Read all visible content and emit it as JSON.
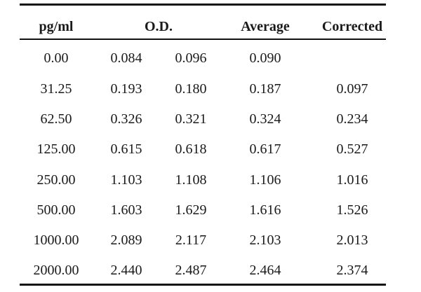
{
  "table": {
    "headers": {
      "conc": "pg/ml",
      "od": "O.D.",
      "average": "Average",
      "corrected": "Corrected"
    },
    "rows": [
      {
        "conc": "0.00",
        "od1": "0.084",
        "od2": "0.096",
        "average": "0.090",
        "corrected": ""
      },
      {
        "conc": "31.25",
        "od1": "0.193",
        "od2": "0.180",
        "average": "0.187",
        "corrected": "0.097"
      },
      {
        "conc": "62.50",
        "od1": "0.326",
        "od2": "0.321",
        "average": "0.324",
        "corrected": "0.234"
      },
      {
        "conc": "125.00",
        "od1": "0.615",
        "od2": "0.618",
        "average": "0.617",
        "corrected": "0.527"
      },
      {
        "conc": "250.00",
        "od1": "1.103",
        "od2": "1.108",
        "average": "1.106",
        "corrected": "1.016"
      },
      {
        "conc": "500.00",
        "od1": "1.603",
        "od2": "1.629",
        "average": "1.616",
        "corrected": "1.526"
      },
      {
        "conc": "1000.00",
        "od1": "2.089",
        "od2": "2.117",
        "average": "2.103",
        "corrected": "2.013"
      },
      {
        "conc": "2000.00",
        "od1": "2.440",
        "od2": "2.487",
        "average": "2.464",
        "corrected": "2.374"
      }
    ]
  }
}
